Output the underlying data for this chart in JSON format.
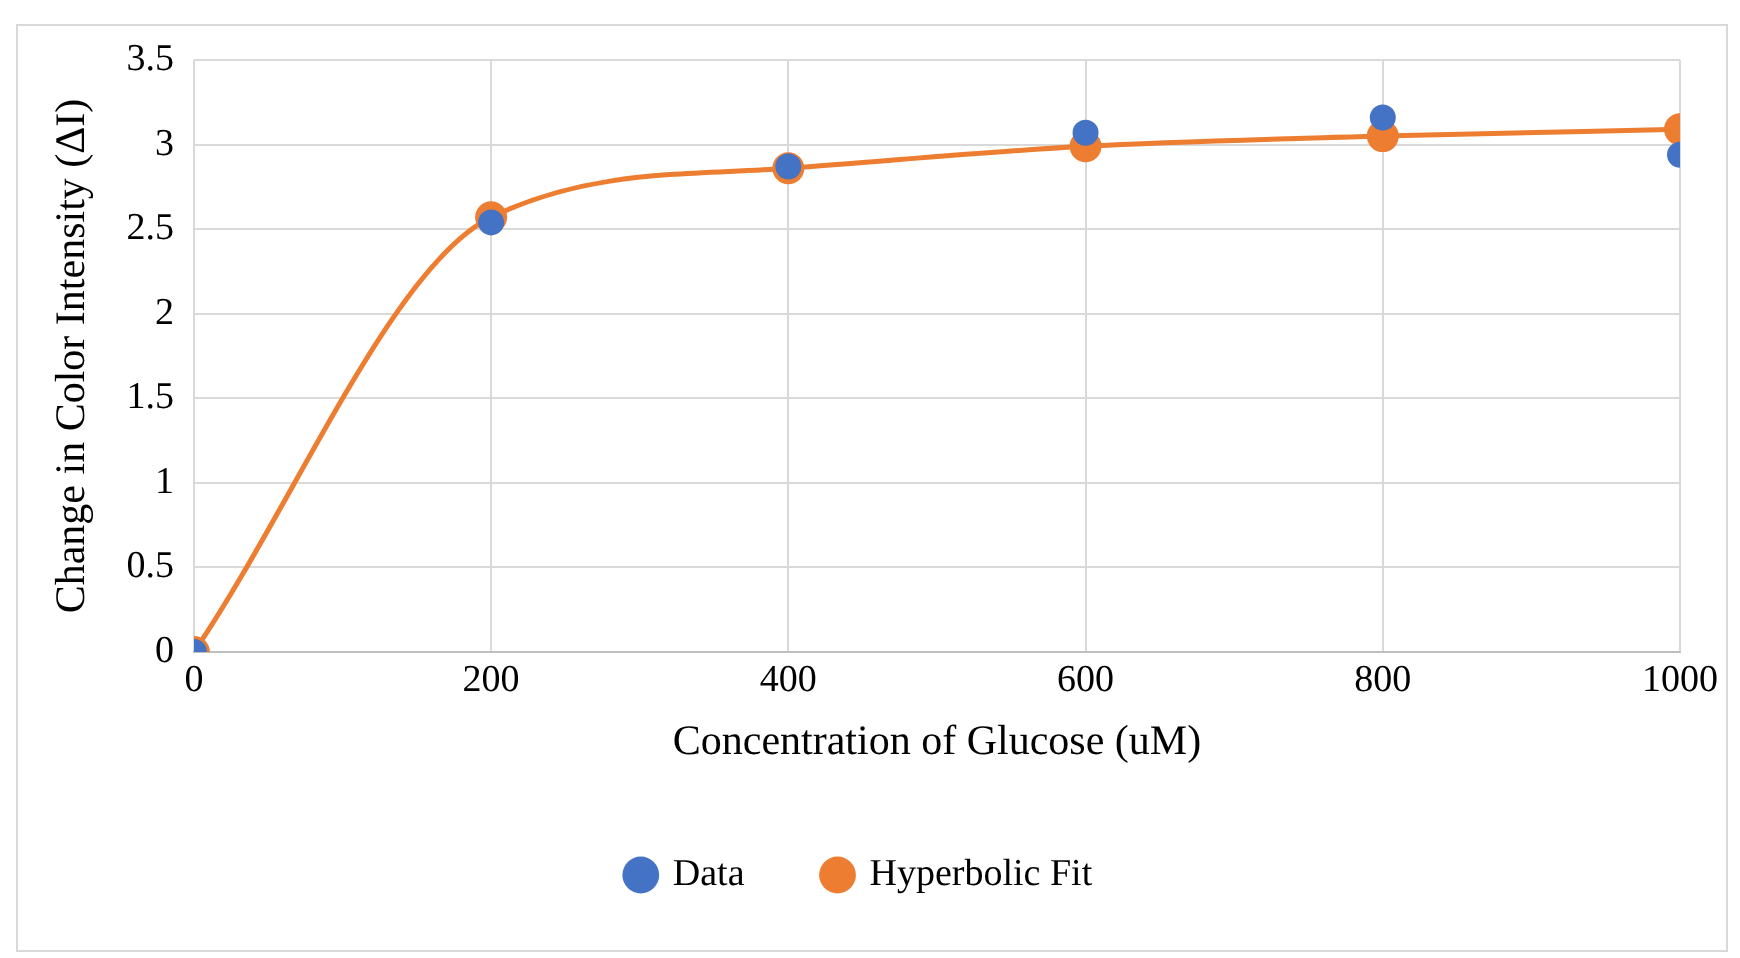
{
  "chart_data": {
    "type": "line",
    "xlabel": "Concentration of Glucose (uM)",
    "ylabel": "Change in Color Intensity (ΔI)",
    "x": [
      0,
      200,
      400,
      600,
      800,
      1000
    ],
    "xlim": [
      0,
      1000
    ],
    "xticks": [
      0,
      200,
      400,
      600,
      800,
      1000
    ],
    "ylim": [
      0,
      3.5
    ],
    "yticks": [
      0,
      0.5,
      1,
      1.5,
      2,
      2.5,
      3,
      3.5
    ],
    "grid": true,
    "legend": "bottom",
    "marker": "circle",
    "series": [
      {
        "name": "Data",
        "type": "scatter",
        "color": "#4472c4",
        "values": [
          0,
          2.54,
          2.87,
          3.07,
          3.16,
          2.94
        ]
      },
      {
        "name": "Hyperbolic Fit",
        "type": "line",
        "color": "#ed7d31",
        "values": [
          0,
          2.57,
          2.86,
          2.99,
          3.05,
          3.09
        ]
      }
    ]
  }
}
